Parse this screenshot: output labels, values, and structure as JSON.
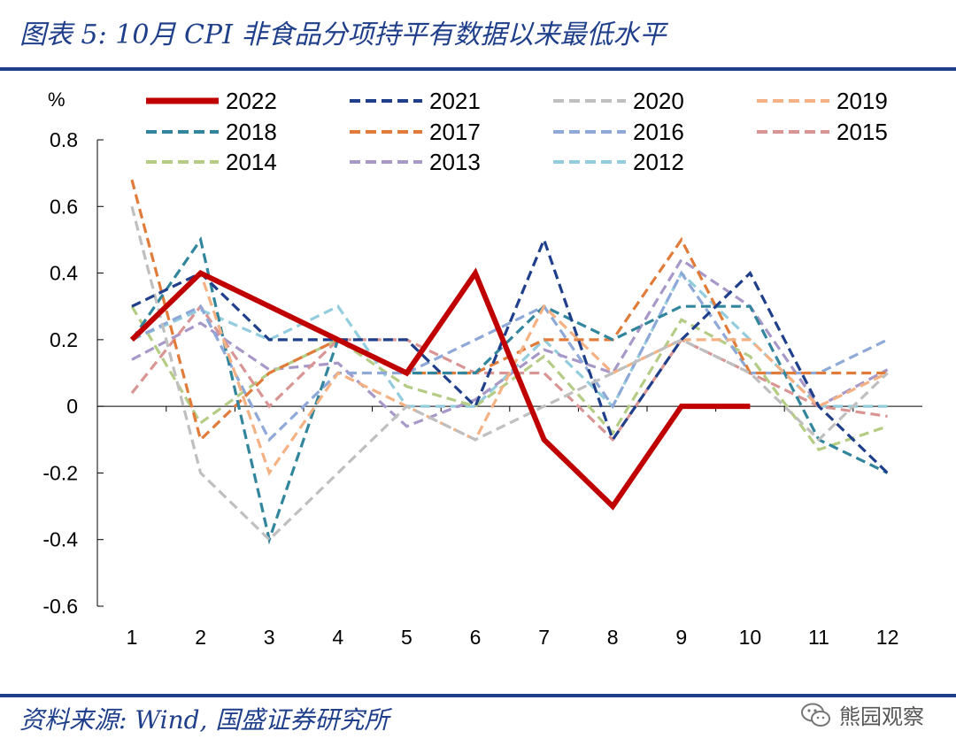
{
  "figure": {
    "title": "图表 5:  10月 CPI 非食品分项持平有数据以来最低水平",
    "source": "资料来源: Wind,  国盛证券研究所",
    "watermark": "熊园观察",
    "watermark_icon": "wechat-icon"
  },
  "chart_data": {
    "type": "line",
    "title": "图表 5:  10月 CPI 非食品分项持平有数据以来最低水平",
    "xlabel": "",
    "ylabel": "%",
    "categories": [
      "1",
      "2",
      "3",
      "4",
      "5",
      "6",
      "7",
      "8",
      "9",
      "10",
      "11",
      "12"
    ],
    "ylim": [
      -0.6,
      0.8
    ],
    "yticks": [
      "0.8",
      "0.6",
      "0.4",
      "0.2",
      "0",
      "-0.2",
      "-0.4",
      "-0.6"
    ],
    "legend_position": "top",
    "series": [
      {
        "name": "2022",
        "color": "#c00000",
        "style": "solid",
        "values": [
          0.2,
          0.4,
          0.3,
          0.2,
          0.1,
          0.4,
          -0.1,
          -0.3,
          0.0,
          0.0,
          null,
          null
        ]
      },
      {
        "name": "2021",
        "color": "#1f3f8a",
        "style": "dashed",
        "values": [
          0.3,
          0.4,
          0.2,
          0.2,
          0.2,
          0.0,
          0.5,
          -0.1,
          0.2,
          0.4,
          0.0,
          -0.2
        ]
      },
      {
        "name": "2020",
        "color": "#bfbfbf",
        "style": "dashed",
        "values": [
          0.6,
          -0.2,
          -0.4,
          -0.2,
          0.0,
          -0.1,
          0.0,
          0.1,
          0.2,
          0.1,
          -0.1,
          0.1
        ]
      },
      {
        "name": "2019",
        "color": "#f4b183",
        "style": "dashed",
        "values": [
          0.2,
          0.4,
          -0.2,
          0.1,
          0.0,
          -0.1,
          0.3,
          0.1,
          0.2,
          0.2,
          0.0,
          0.1
        ]
      },
      {
        "name": "2018",
        "color": "#31859c",
        "style": "dashed",
        "values": [
          0.2,
          0.5,
          -0.4,
          0.2,
          0.1,
          0.1,
          0.3,
          0.2,
          0.3,
          0.3,
          -0.1,
          -0.2
        ]
      },
      {
        "name": "2017",
        "color": "#e07b39",
        "style": "dashed",
        "values": [
          0.68,
          -0.1,
          0.1,
          0.2,
          0.1,
          0.1,
          0.2,
          0.2,
          0.5,
          0.1,
          0.1,
          0.1
        ]
      },
      {
        "name": "2016",
        "color": "#8ea9d8",
        "style": "dashed",
        "values": [
          0.2,
          0.3,
          -0.1,
          0.1,
          0.1,
          0.2,
          0.3,
          0.0,
          0.4,
          0.1,
          0.1,
          0.2
        ]
      },
      {
        "name": "2015",
        "color": "#d99594",
        "style": "dashed",
        "values": [
          0.04,
          0.3,
          0.0,
          0.2,
          0.2,
          0.1,
          0.1,
          -0.1,
          0.2,
          0.1,
          0.0,
          -0.03
        ]
      },
      {
        "name": "2014",
        "color": "#b5cc85",
        "style": "dashed",
        "values": [
          0.3,
          -0.05,
          0.1,
          0.2,
          0.06,
          0.0,
          0.15,
          -0.08,
          0.26,
          0.15,
          -0.13,
          -0.06
        ]
      },
      {
        "name": "2013",
        "color": "#a798c8",
        "style": "dashed",
        "values": [
          0.14,
          0.25,
          0.11,
          0.13,
          -0.06,
          0.02,
          0.17,
          0.1,
          0.44,
          0.3,
          0.0,
          0.11
        ]
      },
      {
        "name": "2012",
        "color": "#93cddd",
        "style": "dashed",
        "values": [
          0.2,
          0.29,
          0.2,
          0.3,
          0.0,
          0.0,
          0.2,
          0.0,
          0.4,
          0.2,
          0.0,
          0.0
        ]
      }
    ]
  }
}
